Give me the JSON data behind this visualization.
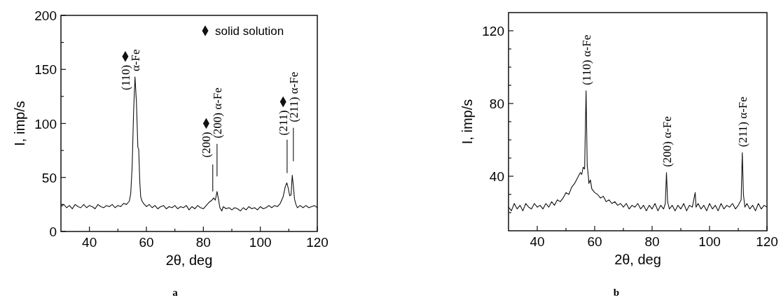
{
  "chart_data": [
    {
      "type": "line",
      "xlabel": "2θ, deg",
      "ylabel": "I, imp/s",
      "xlim": [
        30,
        120
      ],
      "ylim": [
        0,
        200
      ],
      "xticks": [
        40,
        {
          "value": 50,
          "label": null
        },
        60,
        {
          "value": 70,
          "label": null
        },
        80,
        {
          "value": 90,
          "label": null
        },
        100,
        {
          "value": 110,
          "label": null
        },
        120
      ],
      "yticks": [
        0,
        {
          "value": 25,
          "label": null
        },
        50,
        {
          "value": 75,
          "label": null
        },
        100,
        {
          "value": 125,
          "label": null
        },
        150,
        {
          "value": 175,
          "label": null
        },
        200
      ],
      "grid": false,
      "legend": "top right",
      "series": [
        {
          "color": "#111111",
          "x": [
            30,
            31,
            32,
            33,
            34,
            35,
            36,
            37,
            38,
            39,
            40,
            41,
            42,
            43,
            44,
            45,
            46,
            47,
            48,
            49,
            50,
            51,
            52,
            53,
            54,
            54.5,
            55,
            55.5,
            56,
            56.5,
            57,
            57.3,
            57.7,
            58,
            58.5,
            59,
            60,
            61,
            62,
            63,
            64,
            65,
            66,
            67,
            68,
            69,
            70,
            71,
            72,
            73,
            74,
            75,
            76,
            77,
            78,
            79,
            80,
            81,
            82,
            83,
            83.6,
            84.2,
            84.8,
            85.3,
            85.8,
            86.5,
            87,
            88,
            89,
            90,
            91,
            92,
            93,
            94,
            95,
            96,
            97,
            98,
            99,
            100,
            101,
            102,
            103,
            104,
            105,
            106,
            107,
            108,
            108.8,
            109.3,
            109.8,
            110.3,
            110.8,
            111.2,
            111.6,
            112,
            112.5,
            113,
            114,
            115,
            116,
            117,
            118,
            119,
            120
          ],
          "values": [
            23,
            25,
            22,
            24,
            21,
            25,
            23,
            22,
            25,
            22,
            24,
            23,
            21,
            25,
            23,
            22,
            24,
            23,
            25,
            22,
            24,
            23,
            26,
            25,
            28,
            35,
            60,
            110,
            143,
            120,
            78,
            76,
            45,
            32,
            28,
            26,
            23,
            25,
            22,
            24,
            21,
            23,
            24,
            21,
            23,
            22,
            24,
            21,
            23,
            22,
            24,
            20,
            23,
            21,
            24,
            22,
            21,
            24,
            27,
            29,
            31,
            29,
            37,
            30,
            22,
            19,
            23,
            21,
            22,
            20,
            22,
            21,
            19,
            22,
            20,
            23,
            21,
            22,
            20,
            23,
            21,
            22,
            24,
            22,
            24,
            23,
            26,
            32,
            42,
            45,
            40,
            33,
            34,
            52,
            42,
            30,
            25,
            22,
            24,
            22,
            24,
            22,
            23,
            24,
            22
          ]
        },
        {
          "color": "#111111",
          "x": [
            83.3,
            83.3,
            83.9,
            84.8,
            84.8,
            85,
            109.4,
            109.4,
            110,
            111.6,
            111.6
          ],
          "values": [
            62,
            37,
            null,
            81,
            51,
            null,
            85,
            54,
            null,
            96,
            65
          ]
        },
        {
          "type": "scatter",
          "name": "solid solution",
          "color": "#111111",
          "marker": "diamond",
          "x": [
            52.6,
            81,
            108
          ],
          "values": [
            162,
            100,
            120
          ]
        }
      ],
      "annotations": [
        {
          "text": "(110)",
          "x": 52.6,
          "y": 162
        },
        {
          "text": "α-Fe",
          "x": 56,
          "y": 143
        },
        {
          "text": "(200)",
          "x": 81,
          "y": 100
        },
        {
          "text": "(200) α-Fe",
          "x": 84.8,
          "y": 81
        },
        {
          "text": "(211)",
          "x": 108,
          "y": 120
        },
        {
          "text": "(211) α-Fe",
          "x": 111.6,
          "y": 96
        },
        "a"
      ]
    },
    {
      "type": "line",
      "xlabel": "2θ, deg",
      "ylabel": "I, imp/s",
      "xlim": [
        30,
        120
      ],
      "ylim": [
        10,
        130
      ],
      "xticks": [
        40,
        {
          "value": 50,
          "label": null
        },
        60,
        {
          "value": 70,
          "label": null
        },
        80,
        {
          "value": 90,
          "label": null
        },
        100,
        {
          "value": 110,
          "label": null
        },
        120
      ],
      "yticks": [
        {
          "value": 20,
          "label": null
        },
        {
          "value": 30,
          "label": null
        },
        40,
        {
          "value": 50,
          "label": null
        },
        {
          "value": 60,
          "label": null
        },
        {
          "value": 70,
          "label": null
        },
        80,
        {
          "value": 90,
          "label": null
        },
        {
          "value": 100,
          "label": null
        },
        {
          "value": 110,
          "label": null
        },
        120
      ],
      "grid": false,
      "series": [
        {
          "color": "#111111",
          "x": [
            30,
            31,
            32,
            33,
            34,
            35,
            36,
            37,
            38,
            39,
            40,
            41,
            42,
            43,
            44,
            45,
            46,
            47,
            48,
            49,
            50,
            51,
            52,
            53,
            54,
            55,
            55.5,
            56,
            56.5,
            57,
            57.4,
            57.8,
            58,
            58.5,
            59,
            60,
            61,
            62,
            63,
            64,
            65,
            66,
            67,
            68,
            69,
            70,
            71,
            72,
            73,
            74,
            75,
            76,
            77,
            78,
            79,
            80,
            81,
            82,
            83,
            84,
            84.6,
            85,
            85.4,
            86,
            87,
            88,
            89,
            90,
            91,
            92,
            93,
            94,
            95,
            95.3,
            96,
            97,
            98,
            99,
            100,
            101,
            102,
            103,
            104,
            105,
            106,
            107,
            108,
            109,
            110,
            111,
            111.4,
            111.8,
            112.3,
            113,
            114,
            115,
            116,
            117,
            118,
            119,
            120
          ],
          "values": [
            23,
            21,
            25,
            22,
            24,
            21,
            25,
            23,
            22,
            25,
            23,
            24,
            22,
            25,
            23,
            26,
            24,
            27,
            26,
            28,
            31,
            30,
            34,
            36,
            39,
            42,
            41,
            45,
            44,
            87,
            46,
            40,
            36,
            38,
            33,
            31,
            30,
            28,
            29,
            26,
            27,
            25,
            26,
            24,
            25,
            23,
            25,
            22,
            24,
            23,
            25,
            22,
            24,
            21,
            24,
            22,
            25,
            21,
            24,
            22,
            25,
            42,
            26,
            22,
            24,
            21,
            24,
            22,
            25,
            21,
            24,
            23,
            31,
            23,
            25,
            22,
            24,
            21,
            25,
            22,
            24,
            21,
            25,
            22,
            24,
            23,
            25,
            22,
            24,
            27,
            53,
            30,
            23,
            25,
            22,
            24,
            21,
            25,
            22,
            24,
            23
          ]
        }
      ],
      "annotations": [
        {
          "text": "(110) α-Fe",
          "x": 57,
          "y": 87
        },
        {
          "text": "(200) α-Fe",
          "x": 85,
          "y": 42
        },
        {
          "text": "(211) α-Fe",
          "x": 111.4,
          "y": 53
        },
        "b"
      ]
    }
  ]
}
